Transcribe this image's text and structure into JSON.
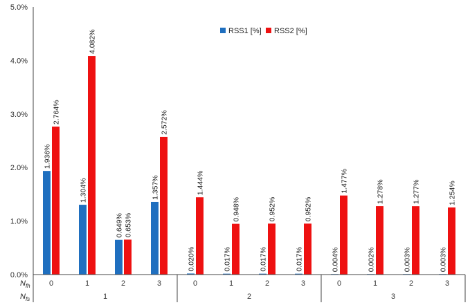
{
  "chart_data": {
    "type": "bar",
    "title": "",
    "xlabel": "",
    "ylabel": "",
    "ylim": [
      0,
      5
    ],
    "yticks": [
      "0.0%",
      "1.0%",
      "2.0%",
      "3.0%",
      "4.0%",
      "5.0%"
    ],
    "grid": false,
    "legend_position": "top-center",
    "row_labels": {
      "inner": {
        "base": "N",
        "sub": "fh"
      },
      "outer": {
        "base": "N",
        "sub": "fs"
      }
    },
    "groups": [
      "1",
      "2",
      "3"
    ],
    "categories": [
      "0",
      "1",
      "2",
      "3",
      "0",
      "1",
      "2",
      "3",
      "0",
      "1",
      "2",
      "3"
    ],
    "category_group": [
      0,
      0,
      0,
      0,
      1,
      1,
      1,
      1,
      2,
      2,
      2,
      2
    ],
    "series": [
      {
        "name": "RSS1 [%]",
        "color": "#1f6fbf",
        "values": [
          1.936,
          1.304,
          0.649,
          1.357,
          0.02,
          0.017,
          0.017,
          0.017,
          0.004,
          0.002,
          0.003,
          0.003
        ],
        "labels": [
          "1.936%",
          "1.304%",
          "0.649%",
          "1.357%",
          "0.020%",
          "0.017%",
          "0.017%",
          "0.017%",
          "0.004%",
          "0.002%",
          "0.003%",
          "0.003%"
        ]
      },
      {
        "name": "RSS2 [%]",
        "color": "#ee1111",
        "values": [
          2.764,
          4.082,
          0.653,
          2.572,
          1.444,
          0.948,
          0.952,
          0.952,
          1.477,
          1.278,
          1.277,
          1.254
        ],
        "labels": [
          "2.764%",
          "4.082%",
          "0.653%",
          "2.572%",
          "1.444%",
          "0.948%",
          "0.952%",
          "0.952%",
          "1.477%",
          "1.278%",
          "1.277%",
          "1.254%"
        ]
      }
    ]
  }
}
